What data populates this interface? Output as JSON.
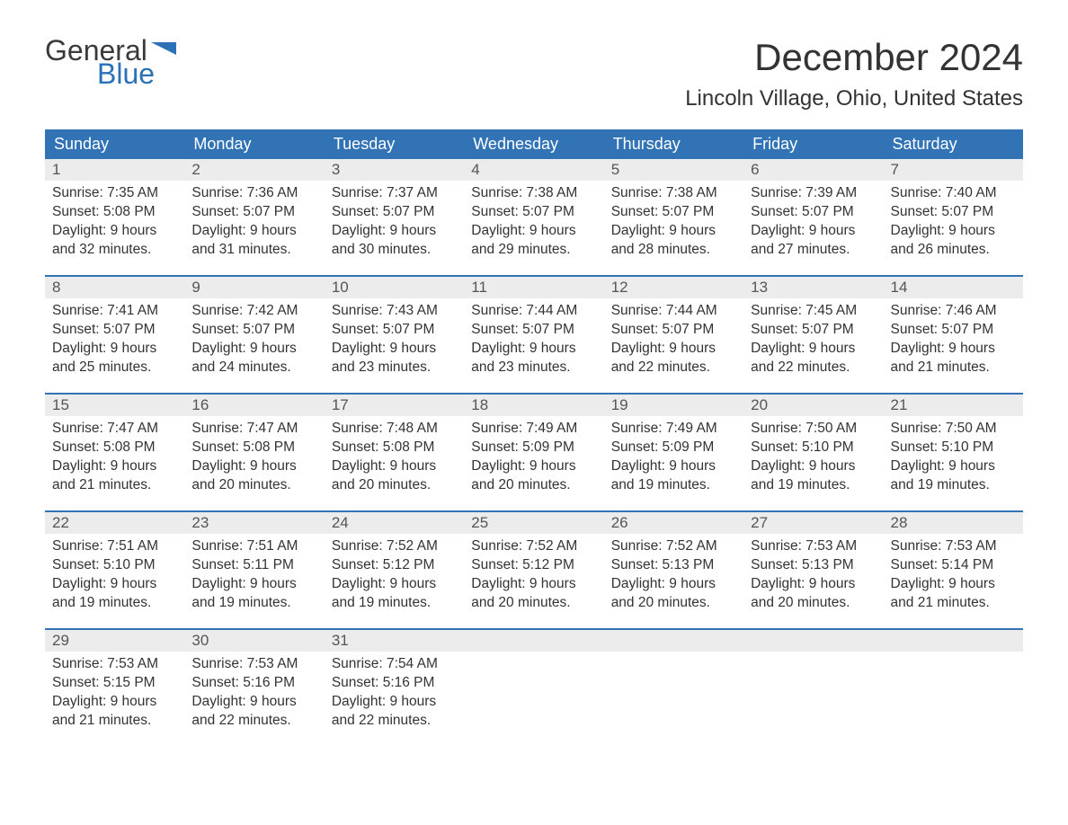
{
  "brand": {
    "word1": "General",
    "word2": "Blue",
    "flag_color": "#2a71b8",
    "text_dark": "#3a3a3a",
    "text_blue": "#2a71b8"
  },
  "title": "December 2024",
  "location": "Lincoln Village, Ohio, United States",
  "colors": {
    "header_bg": "#3273b5",
    "header_text": "#ffffff",
    "daynum_bg": "#ececec",
    "daynum_text": "#555555",
    "body_text": "#333333",
    "week_border": "#3273b5",
    "page_bg": "#ffffff"
  },
  "typography": {
    "month_title_size_pt": 32,
    "location_size_pt": 18,
    "header_size_pt": 14,
    "body_size_pt": 12
  },
  "day_headers": [
    "Sunday",
    "Monday",
    "Tuesday",
    "Wednesday",
    "Thursday",
    "Friday",
    "Saturday"
  ],
  "labels": {
    "sunrise": "Sunrise",
    "sunset": "Sunset",
    "daylight": "Daylight"
  },
  "weeks": [
    [
      {
        "n": "1",
        "sr": "7:35 AM",
        "ss": "5:08 PM",
        "dl": "9 hours and 32 minutes."
      },
      {
        "n": "2",
        "sr": "7:36 AM",
        "ss": "5:07 PM",
        "dl": "9 hours and 31 minutes."
      },
      {
        "n": "3",
        "sr": "7:37 AM",
        "ss": "5:07 PM",
        "dl": "9 hours and 30 minutes."
      },
      {
        "n": "4",
        "sr": "7:38 AM",
        "ss": "5:07 PM",
        "dl": "9 hours and 29 minutes."
      },
      {
        "n": "5",
        "sr": "7:38 AM",
        "ss": "5:07 PM",
        "dl": "9 hours and 28 minutes."
      },
      {
        "n": "6",
        "sr": "7:39 AM",
        "ss": "5:07 PM",
        "dl": "9 hours and 27 minutes."
      },
      {
        "n": "7",
        "sr": "7:40 AM",
        "ss": "5:07 PM",
        "dl": "9 hours and 26 minutes."
      }
    ],
    [
      {
        "n": "8",
        "sr": "7:41 AM",
        "ss": "5:07 PM",
        "dl": "9 hours and 25 minutes."
      },
      {
        "n": "9",
        "sr": "7:42 AM",
        "ss": "5:07 PM",
        "dl": "9 hours and 24 minutes."
      },
      {
        "n": "10",
        "sr": "7:43 AM",
        "ss": "5:07 PM",
        "dl": "9 hours and 23 minutes."
      },
      {
        "n": "11",
        "sr": "7:44 AM",
        "ss": "5:07 PM",
        "dl": "9 hours and 23 minutes."
      },
      {
        "n": "12",
        "sr": "7:44 AM",
        "ss": "5:07 PM",
        "dl": "9 hours and 22 minutes."
      },
      {
        "n": "13",
        "sr": "7:45 AM",
        "ss": "5:07 PM",
        "dl": "9 hours and 22 minutes."
      },
      {
        "n": "14",
        "sr": "7:46 AM",
        "ss": "5:07 PM",
        "dl": "9 hours and 21 minutes."
      }
    ],
    [
      {
        "n": "15",
        "sr": "7:47 AM",
        "ss": "5:08 PM",
        "dl": "9 hours and 21 minutes."
      },
      {
        "n": "16",
        "sr": "7:47 AM",
        "ss": "5:08 PM",
        "dl": "9 hours and 20 minutes."
      },
      {
        "n": "17",
        "sr": "7:48 AM",
        "ss": "5:08 PM",
        "dl": "9 hours and 20 minutes."
      },
      {
        "n": "18",
        "sr": "7:49 AM",
        "ss": "5:09 PM",
        "dl": "9 hours and 20 minutes."
      },
      {
        "n": "19",
        "sr": "7:49 AM",
        "ss": "5:09 PM",
        "dl": "9 hours and 19 minutes."
      },
      {
        "n": "20",
        "sr": "7:50 AM",
        "ss": "5:10 PM",
        "dl": "9 hours and 19 minutes."
      },
      {
        "n": "21",
        "sr": "7:50 AM",
        "ss": "5:10 PM",
        "dl": "9 hours and 19 minutes."
      }
    ],
    [
      {
        "n": "22",
        "sr": "7:51 AM",
        "ss": "5:10 PM",
        "dl": "9 hours and 19 minutes."
      },
      {
        "n": "23",
        "sr": "7:51 AM",
        "ss": "5:11 PM",
        "dl": "9 hours and 19 minutes."
      },
      {
        "n": "24",
        "sr": "7:52 AM",
        "ss": "5:12 PM",
        "dl": "9 hours and 19 minutes."
      },
      {
        "n": "25",
        "sr": "7:52 AM",
        "ss": "5:12 PM",
        "dl": "9 hours and 20 minutes."
      },
      {
        "n": "26",
        "sr": "7:52 AM",
        "ss": "5:13 PM",
        "dl": "9 hours and 20 minutes."
      },
      {
        "n": "27",
        "sr": "7:53 AM",
        "ss": "5:13 PM",
        "dl": "9 hours and 20 minutes."
      },
      {
        "n": "28",
        "sr": "7:53 AM",
        "ss": "5:14 PM",
        "dl": "9 hours and 21 minutes."
      }
    ],
    [
      {
        "n": "29",
        "sr": "7:53 AM",
        "ss": "5:15 PM",
        "dl": "9 hours and 21 minutes."
      },
      {
        "n": "30",
        "sr": "7:53 AM",
        "ss": "5:16 PM",
        "dl": "9 hours and 22 minutes."
      },
      {
        "n": "31",
        "sr": "7:54 AM",
        "ss": "5:16 PM",
        "dl": "9 hours and 22 minutes."
      },
      null,
      null,
      null,
      null
    ]
  ]
}
